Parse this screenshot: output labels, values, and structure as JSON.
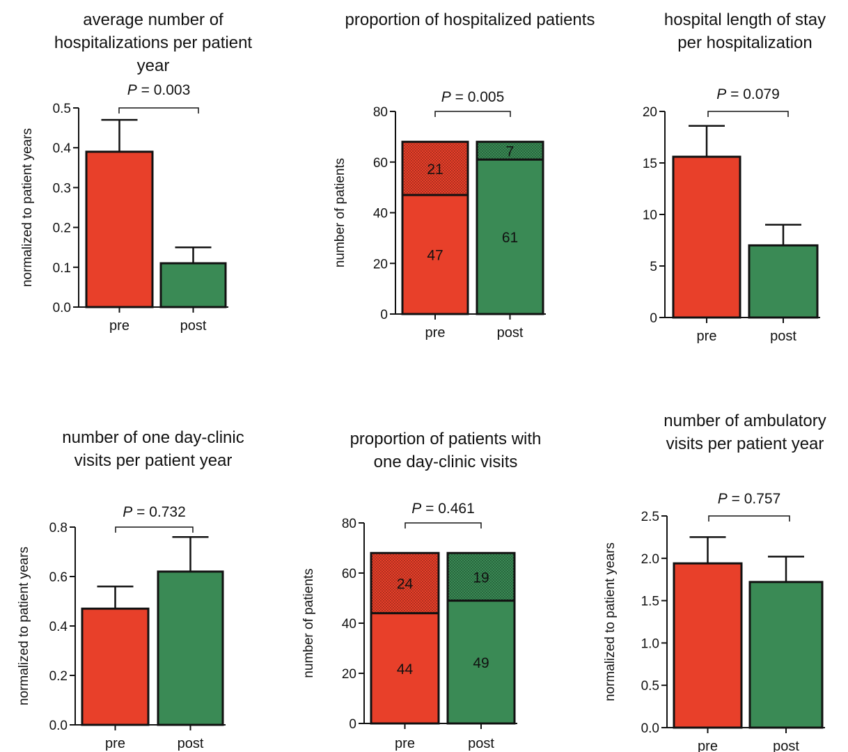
{
  "colors": {
    "pre": "#e8402a",
    "post": "#3a8a55",
    "axis": "#111111"
  },
  "chart_data": [
    {
      "id": "c1",
      "type": "bar",
      "title": "average number of hospitalizations per patient year",
      "ylabel": "normalized to patient years",
      "categories": [
        "pre",
        "post"
      ],
      "values": [
        0.39,
        0.11
      ],
      "errors": [
        0.08,
        0.04
      ],
      "ylim": [
        0,
        0.5
      ],
      "ytick_labels": [
        "0.0",
        "0.1",
        "0.2",
        "0.3",
        "0.4",
        "0.5"
      ],
      "ytick_values": [
        0,
        0.1,
        0.2,
        0.3,
        0.4,
        0.5
      ],
      "p_label": "P",
      "p_text": " = 0.003"
    },
    {
      "id": "c2",
      "type": "bar",
      "stacked": true,
      "title": "proportion of hospitalized patients",
      "ylabel": "number of patients",
      "categories": [
        "pre",
        "post"
      ],
      "bottom": [
        47,
        61
      ],
      "top": [
        21,
        7
      ],
      "ylim": [
        0,
        80
      ],
      "ytick_labels": [
        "0",
        "20",
        "40",
        "60",
        "80"
      ],
      "ytick_values": [
        0,
        20,
        40,
        60,
        80
      ],
      "p_label": "P",
      "p_text": " = 0.005"
    },
    {
      "id": "c3",
      "type": "bar",
      "title": "hospital length of stay per hospitalization",
      "ylabel": "",
      "categories": [
        "pre",
        "post"
      ],
      "values": [
        15.6,
        7.0
      ],
      "errors": [
        3.0,
        2.0
      ],
      "ylim": [
        0,
        20
      ],
      "ytick_labels": [
        "0",
        "5",
        "10",
        "15",
        "20"
      ],
      "ytick_values": [
        0,
        5,
        10,
        15,
        20
      ],
      "p_label": "P",
      "p_text": " = 0.079"
    },
    {
      "id": "c4",
      "type": "bar",
      "title": "number of one day-clinic visits per patient year",
      "ylabel": "normalized to patient years",
      "categories": [
        "pre",
        "post"
      ],
      "values": [
        0.47,
        0.62
      ],
      "errors": [
        0.09,
        0.14
      ],
      "ylim": [
        0,
        0.8
      ],
      "ytick_labels": [
        "0.0",
        "0.2",
        "0.4",
        "0.6",
        "0.8"
      ],
      "ytick_values": [
        0,
        0.2,
        0.4,
        0.6,
        0.8
      ],
      "p_label": "P",
      "p_text": " = 0.732"
    },
    {
      "id": "c5",
      "type": "bar",
      "stacked": true,
      "title": "proportion of patients with one day-clinic visits",
      "ylabel": "number of patients",
      "categories": [
        "pre",
        "post"
      ],
      "bottom": [
        44,
        49
      ],
      "top": [
        24,
        19
      ],
      "ylim": [
        0,
        80
      ],
      "ytick_labels": [
        "0",
        "20",
        "40",
        "60",
        "80"
      ],
      "ytick_values": [
        0,
        20,
        40,
        60,
        80
      ],
      "p_label": "P",
      "p_text": " = 0.461"
    },
    {
      "id": "c6",
      "type": "bar",
      "title": "number of ambulatory visits per patient year",
      "ylabel": "normalized to patient years",
      "categories": [
        "pre",
        "post"
      ],
      "values": [
        1.94,
        1.72
      ],
      "errors": [
        0.31,
        0.3
      ],
      "ylim": [
        0,
        2.5
      ],
      "ytick_labels": [
        "0.0",
        "0.5",
        "1.0",
        "1.5",
        "2.0",
        "2.5"
      ],
      "ytick_values": [
        0,
        0.5,
        1.0,
        1.5,
        2.0,
        2.5
      ],
      "p_label": "P",
      "p_text": " = 0.757"
    }
  ]
}
